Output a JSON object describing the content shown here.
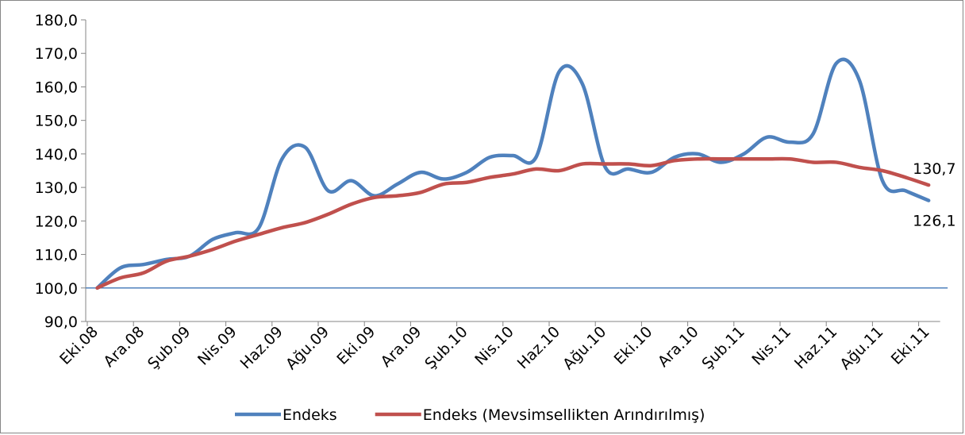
{
  "chart_data": {
    "type": "line",
    "categories": [
      "Eki.08",
      null,
      "Ara.08",
      null,
      "Şub.09",
      null,
      "Nis.09",
      null,
      "Haz.09",
      null,
      "Ağu.09",
      null,
      "Eki.09",
      null,
      "Ara.09",
      null,
      "Şub.10",
      null,
      "Nis.10",
      null,
      "Haz.10",
      null,
      "Ağu.10",
      null,
      "Eki.10",
      null,
      "Ara.10",
      null,
      "Şub.11",
      null,
      "Nis.11",
      null,
      "Haz.11",
      null,
      "Ağu.11",
      null,
      "Eki.11"
    ],
    "series": [
      {
        "name": "Endeks",
        "color": "#4f81bd",
        "values": [
          100,
          106,
          107,
          108.5,
          109.5,
          114.5,
          116.5,
          118,
          138.5,
          142,
          129,
          132,
          127.5,
          131,
          134.5,
          132.5,
          134.5,
          139,
          139.5,
          139,
          164.5,
          161,
          136,
          135.5,
          134.5,
          139,
          140,
          137.5,
          140,
          145,
          143.5,
          146,
          167,
          162,
          132,
          129,
          126.1
        ],
        "value_labels": [
          null,
          null,
          null,
          null,
          null,
          null,
          null,
          null,
          null,
          null,
          null,
          null,
          null,
          null,
          null,
          null,
          null,
          null,
          null,
          null,
          null,
          null,
          null,
          null,
          null,
          null,
          null,
          null,
          null,
          null,
          null,
          null,
          null,
          null,
          null,
          null,
          "126,1"
        ]
      },
      {
        "name": "Endeks (Mevsimsellikten Arındırılmış)",
        "color": "#c0504d",
        "values": [
          100,
          103,
          104.5,
          108,
          109.5,
          111.5,
          114,
          116,
          118,
          119.5,
          122,
          125,
          127,
          127.5,
          128.5,
          131,
          131.5,
          133,
          134,
          135.5,
          135,
          137,
          137,
          137,
          136.5,
          138,
          138.5,
          138.5,
          138.5,
          138.5,
          138.5,
          137.5,
          137.5,
          136,
          135,
          133,
          130.7
        ],
        "value_labels": [
          null,
          null,
          null,
          null,
          null,
          null,
          null,
          null,
          null,
          null,
          null,
          null,
          null,
          null,
          null,
          null,
          null,
          null,
          null,
          null,
          null,
          null,
          null,
          null,
          null,
          null,
          null,
          null,
          null,
          null,
          null,
          null,
          null,
          null,
          null,
          null,
          "130,7"
        ]
      }
    ],
    "reference_line": 100,
    "ylim": [
      90,
      180
    ],
    "yticks": [
      {
        "value": 90,
        "label": "90,0"
      },
      {
        "value": 100,
        "label": "100,0"
      },
      {
        "value": 110,
        "label": "110,0"
      },
      {
        "value": 120,
        "label": "120,0"
      },
      {
        "value": 130,
        "label": "130,0"
      },
      {
        "value": 140,
        "label": "140,0"
      },
      {
        "value": 150,
        "label": "150,0"
      },
      {
        "value": 160,
        "label": "160,0"
      },
      {
        "value": 170,
        "label": "170,0"
      },
      {
        "value": 180,
        "label": "180,0"
      }
    ],
    "legend": "bottom"
  }
}
